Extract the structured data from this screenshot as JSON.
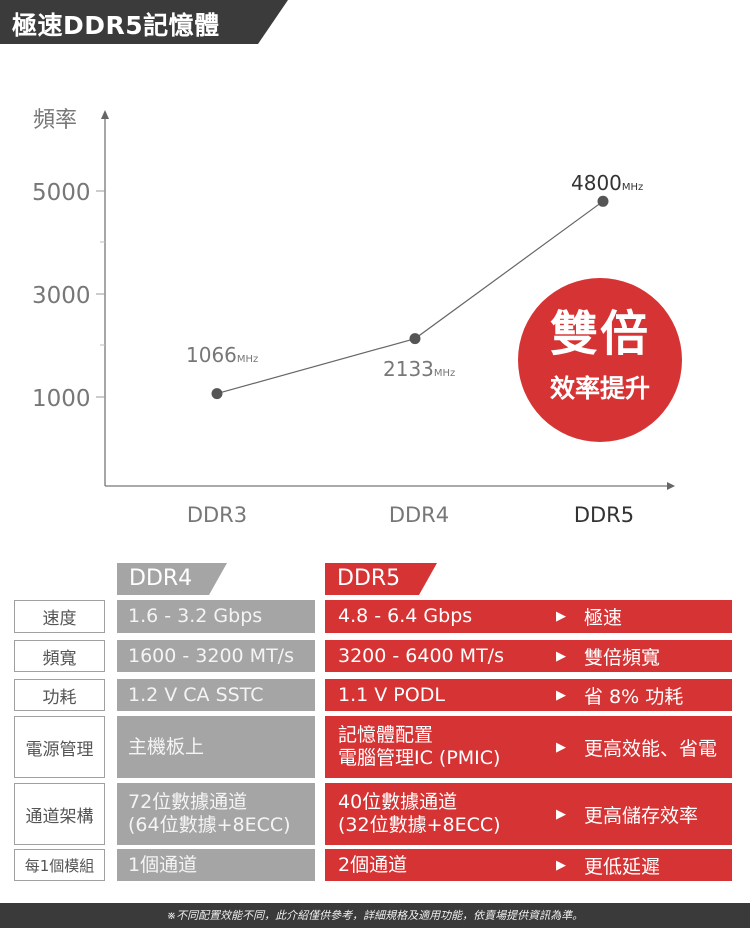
{
  "header": {
    "title": "極速DDR5記憶體"
  },
  "chart_data": {
    "type": "line",
    "title": "",
    "ylabel": "頻率",
    "xlabel": "",
    "categories": [
      "DDR3",
      "DDR4",
      "DDR5"
    ],
    "values": [
      1066,
      2133,
      4800
    ],
    "value_labels": [
      "1066",
      "2133",
      "4800"
    ],
    "unit": "MHz",
    "yticks": [
      "5000",
      "3000",
      "1000"
    ],
    "grid": false,
    "legend": null
  },
  "badge": {
    "main": "雙倍",
    "sub": "效率提升"
  },
  "table": {
    "headers": {
      "ddr4": "DDR4",
      "ddr5": "DDR5"
    },
    "arrow_icon": "▶",
    "rows": [
      {
        "label": "速度",
        "ddr4": [
          "1.6 - 3.2 Gbps"
        ],
        "ddr5": [
          "4.8 - 6.4 Gbps"
        ],
        "benefit": "極速"
      },
      {
        "label": "頻寬",
        "ddr4": [
          "1600 - 3200 MT/s"
        ],
        "ddr5": [
          "3200 - 6400 MT/s"
        ],
        "benefit": "雙倍頻寬"
      },
      {
        "label": "功耗",
        "ddr4": [
          "1.2 V CA SSTC"
        ],
        "ddr5": [
          "1.1 V PODL"
        ],
        "benefit": "省 8% 功耗"
      },
      {
        "label": "電源管理",
        "ddr4": [
          "主機板上"
        ],
        "ddr5": [
          "記憶體配置",
          "電腦管理IC (PMIC)"
        ],
        "benefit": "更高效能、省電"
      },
      {
        "label": "通道架構",
        "ddr4": [
          "72位數據通道",
          "(64位數據+8ECC)"
        ],
        "ddr5": [
          "40位數據通道",
          "(32位數據+8ECC)"
        ],
        "benefit": "更高儲存效率"
      },
      {
        "label": "每1個模組",
        "ddr4": [
          "1個通道"
        ],
        "ddr5": [
          "2個通道"
        ],
        "benefit": "更低延遲"
      }
    ]
  },
  "footer": {
    "note": "※不同配置效能不同，此介紹僅供參考，詳細規格及適用功能，依賣場提供資訊為準。"
  },
  "colors": {
    "accent_red": "#d63334",
    "gray": "#a5a5a5",
    "dark": "#3b3b3b"
  }
}
